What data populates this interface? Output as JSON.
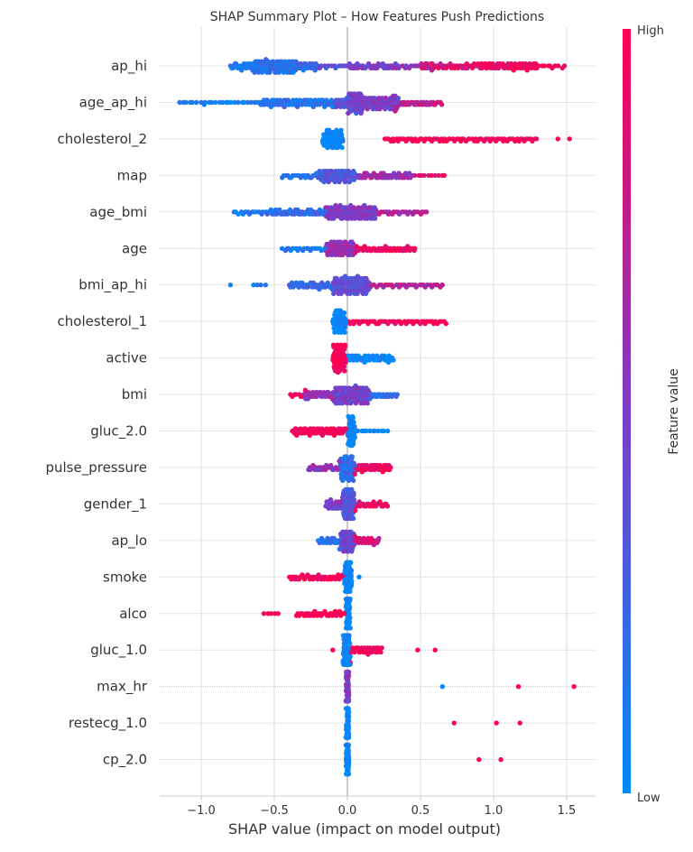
{
  "chart_data": {
    "type": "scatter",
    "subtype": "shap-beeswarm",
    "title": "SHAP Summary Plot – How Features Push Predictions",
    "xlabel": "SHAP value (impact on model output)",
    "xlim": [
      -1.28,
      1.7
    ],
    "xticks": [
      -1.0,
      -0.5,
      0.0,
      0.5,
      1.0,
      1.5
    ],
    "xtick_labels": [
      "−1.0",
      "−0.5",
      "0.0",
      "0.5",
      "1.0",
      "1.5"
    ],
    "grid": true,
    "colorbar": {
      "label": "Feature value",
      "high_label": "High",
      "low_label": "Low",
      "low_color": "#008afb",
      "mid_color": "#7c3cc8",
      "high_color": "#ff0052"
    },
    "note_segments": "each feature lists point groups as [shap_from, shap_to, approx_count, normalized_feature_value]",
    "features": [
      {
        "name": "ap_hi",
        "segments": [
          [
            -0.8,
            -0.65,
            22,
            0.1
          ],
          [
            -0.65,
            -0.35,
            90,
            0.15
          ],
          [
            -0.35,
            -0.2,
            25,
            0.2
          ],
          [
            -0.2,
            0,
            12,
            0.35
          ],
          [
            0,
            0.35,
            40,
            0.5
          ],
          [
            0.35,
            0.6,
            15,
            0.6
          ],
          [
            0.5,
            0.9,
            40,
            0.85
          ],
          [
            0.9,
            1.3,
            60,
            0.95
          ],
          [
            1.3,
            1.5,
            10,
            1
          ]
        ]
      },
      {
        "name": "age_ap_hi",
        "segments": [
          [
            -1.15,
            -0.6,
            25,
            0.05
          ],
          [
            -0.6,
            -0.1,
            80,
            0.15
          ],
          [
            -0.1,
            0.1,
            40,
            0.4
          ],
          [
            0,
            0.35,
            100,
            0.5
          ],
          [
            0.3,
            0.65,
            35,
            0.75
          ]
        ]
      },
      {
        "name": "cholesterol_2",
        "segments": [
          [
            -0.17,
            -0.03,
            60,
            0
          ],
          [
            0.25,
            0.7,
            35,
            1
          ],
          [
            0.7,
            1.3,
            45,
            1
          ],
          [
            1.44,
            1.44,
            1,
            1
          ],
          [
            1.52,
            1.52,
            1,
            1
          ]
        ]
      },
      {
        "name": "map",
        "segments": [
          [
            -0.45,
            -0.2,
            20,
            0.15
          ],
          [
            -0.2,
            0.05,
            70,
            0.35
          ],
          [
            0.05,
            0.45,
            50,
            0.6
          ],
          [
            0.45,
            0.68,
            10,
            0.9
          ]
        ]
      },
      {
        "name": "age_bmi",
        "segments": [
          [
            -0.78,
            -0.55,
            15,
            0.1
          ],
          [
            -0.55,
            -0.15,
            50,
            0.2
          ],
          [
            -0.15,
            0.2,
            110,
            0.5
          ],
          [
            0.2,
            0.55,
            25,
            0.7
          ]
        ]
      },
      {
        "name": "age",
        "segments": [
          [
            -0.45,
            -0.15,
            20,
            0.1
          ],
          [
            -0.15,
            0.05,
            70,
            0.6
          ],
          [
            0.05,
            0.47,
            45,
            0.95
          ]
        ]
      },
      {
        "name": "bmi_ap_hi",
        "segments": [
          [
            -0.8,
            -0.8,
            1,
            0.05
          ],
          [
            -0.66,
            -0.55,
            4,
            0.05
          ],
          [
            -0.4,
            -0.1,
            40,
            0.2
          ],
          [
            -0.1,
            0.15,
            100,
            0.4
          ],
          [
            0.15,
            0.66,
            35,
            0.7
          ]
        ]
      },
      {
        "name": "cholesterol_1",
        "segments": [
          [
            -0.1,
            -0.01,
            50,
            0
          ],
          [
            0,
            0.68,
            50,
            1
          ]
        ]
      },
      {
        "name": "active",
        "segments": [
          [
            -0.1,
            -0.01,
            60,
            1
          ],
          [
            0,
            0.32,
            45,
            0
          ]
        ]
      },
      {
        "name": "bmi",
        "segments": [
          [
            -0.4,
            -0.25,
            10,
            0.95
          ],
          [
            -0.3,
            -0.1,
            30,
            0.6
          ],
          [
            -0.1,
            0.15,
            100,
            0.45
          ],
          [
            0.15,
            0.35,
            20,
            0.2
          ]
        ]
      },
      {
        "name": "gluc_2.0",
        "segments": [
          [
            -0.38,
            -0.01,
            60,
            1
          ],
          [
            0,
            0.05,
            40,
            0
          ],
          [
            0.05,
            0.28,
            12,
            0
          ]
        ]
      },
      {
        "name": "pulse_pressure",
        "segments": [
          [
            -0.27,
            -0.05,
            25,
            0.6
          ],
          [
            -0.05,
            0.05,
            60,
            0.2
          ],
          [
            0.05,
            0.3,
            40,
            0.95
          ]
        ]
      },
      {
        "name": "gender_1",
        "segments": [
          [
            -0.15,
            -0.03,
            25,
            0.5
          ],
          [
            -0.03,
            0.05,
            70,
            0.3
          ],
          [
            0.05,
            0.28,
            25,
            0.9
          ]
        ]
      },
      {
        "name": "ap_lo",
        "segments": [
          [
            -0.2,
            -0.05,
            20,
            0.2
          ],
          [
            -0.05,
            0.05,
            50,
            0.45
          ],
          [
            0.05,
            0.22,
            25,
            0.85
          ]
        ]
      },
      {
        "name": "smoke",
        "segments": [
          [
            -0.4,
            -0.02,
            40,
            1
          ],
          [
            -0.02,
            0.03,
            60,
            0
          ],
          [
            0.08,
            0.08,
            1,
            0
          ]
        ]
      },
      {
        "name": "alco",
        "segments": [
          [
            -0.58,
            -0.45,
            5,
            1
          ],
          [
            -0.35,
            -0.02,
            35,
            1
          ],
          [
            -0.01,
            0.02,
            60,
            0
          ]
        ]
      },
      {
        "name": "gluc_1.0",
        "segments": [
          [
            -0.1,
            -0.1,
            1,
            1
          ],
          [
            -0.03,
            0.02,
            60,
            0
          ],
          [
            0.02,
            0.24,
            35,
            1
          ],
          [
            0.48,
            0.48,
            1,
            1
          ],
          [
            0.6,
            0.6,
            1,
            1
          ]
        ]
      },
      {
        "name": "max_hr",
        "segments": [
          [
            -0.01,
            0.01,
            60,
            0.5
          ],
          [
            0.65,
            0.65,
            1,
            0
          ],
          [
            1.17,
            1.17,
            1,
            1
          ],
          [
            1.55,
            1.55,
            1,
            1
          ]
        ]
      },
      {
        "name": "restecg_1.0",
        "segments": [
          [
            -0.01,
            0.01,
            60,
            0
          ],
          [
            0.73,
            0.73,
            1,
            1
          ],
          [
            1.02,
            1.02,
            1,
            1
          ],
          [
            1.18,
            1.18,
            1,
            1
          ]
        ]
      },
      {
        "name": "cp_2.0",
        "segments": [
          [
            -0.01,
            0.01,
            60,
            0
          ],
          [
            0.9,
            0.9,
            1,
            1
          ],
          [
            1.05,
            1.05,
            1,
            1
          ]
        ]
      }
    ]
  }
}
